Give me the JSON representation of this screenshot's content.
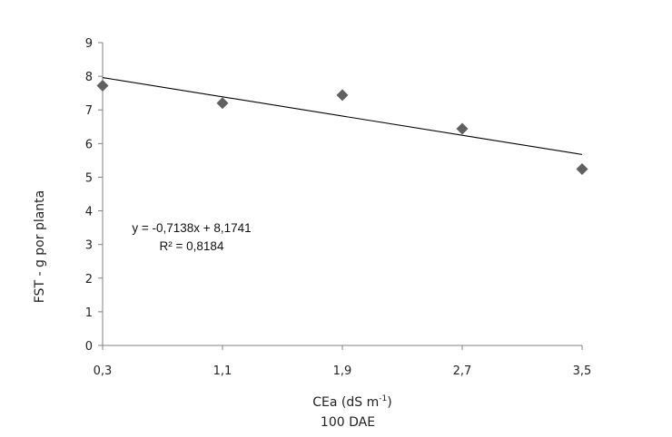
{
  "chart_data": {
    "type": "scatter",
    "x": [
      0.3,
      1.1,
      1.9,
      2.7,
      3.5
    ],
    "y": [
      7.72,
      7.2,
      7.44,
      6.44,
      5.24
    ],
    "x_tick_labels": [
      "0,3",
      "1,1",
      "1,9",
      "2,7",
      "3,5"
    ],
    "y_tick_labels": [
      "0",
      "1",
      "2",
      "3",
      "4",
      "5",
      "6",
      "7",
      "8",
      "9"
    ],
    "ylim": [
      0,
      9
    ],
    "xlabel": "CEa (dS m",
    "xlabel_superscript": "-1",
    "xlabel_suffix": ")",
    "subtitle": "100 DAE",
    "ylabel": "FST - g por planta",
    "grid": false,
    "trendline": {
      "slope": -0.7138,
      "intercept": 8.1741,
      "equation": "y = -0,7138x + 8,1741",
      "r2": "R² = 0,8184"
    },
    "marker": {
      "shape": "diamond",
      "color": "#606060"
    },
    "line_color": "#000000",
    "axis_color": "#808080"
  }
}
